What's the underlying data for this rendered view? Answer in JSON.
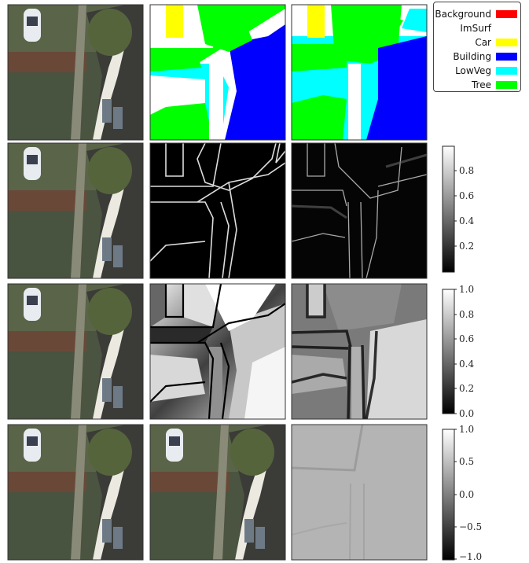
{
  "legend": {
    "items": [
      {
        "label": "Background",
        "color": "#ff0000"
      },
      {
        "label": "ImSurf",
        "color": "#ffffff"
      },
      {
        "label": "Car",
        "color": "#ffff00"
      },
      {
        "label": "Building",
        "color": "#0000ff"
      },
      {
        "label": "LowVeg",
        "color": "#00ffff"
      },
      {
        "label": "Tree",
        "color": "#00ff00"
      }
    ]
  },
  "colorbars": [
    {
      "ticks": [
        "0.8",
        "0.6",
        "0.4",
        "0.2"
      ]
    },
    {
      "ticks": [
        "1.0",
        "0.8",
        "0.6",
        "0.4",
        "0.2",
        "0.0"
      ]
    },
    {
      "ticks": [
        "1.0",
        "0.5",
        "0.0",
        "−0.5",
        "−1.0"
      ]
    }
  ],
  "chart_data": [
    {
      "type": "heatmap",
      "colormap": "gray",
      "range": [
        0,
        1
      ],
      "ticks": [
        0.2,
        0.4,
        0.6,
        0.8
      ]
    },
    {
      "type": "heatmap",
      "colormap": "gray",
      "range": [
        0,
        1
      ],
      "ticks": [
        0.0,
        0.2,
        0.4,
        0.6,
        0.8,
        1.0
      ]
    },
    {
      "type": "heatmap",
      "colormap": "gray",
      "range": [
        -1,
        1
      ],
      "ticks": [
        -1.0,
        -0.5,
        0.0,
        0.5,
        1.0
      ]
    }
  ]
}
